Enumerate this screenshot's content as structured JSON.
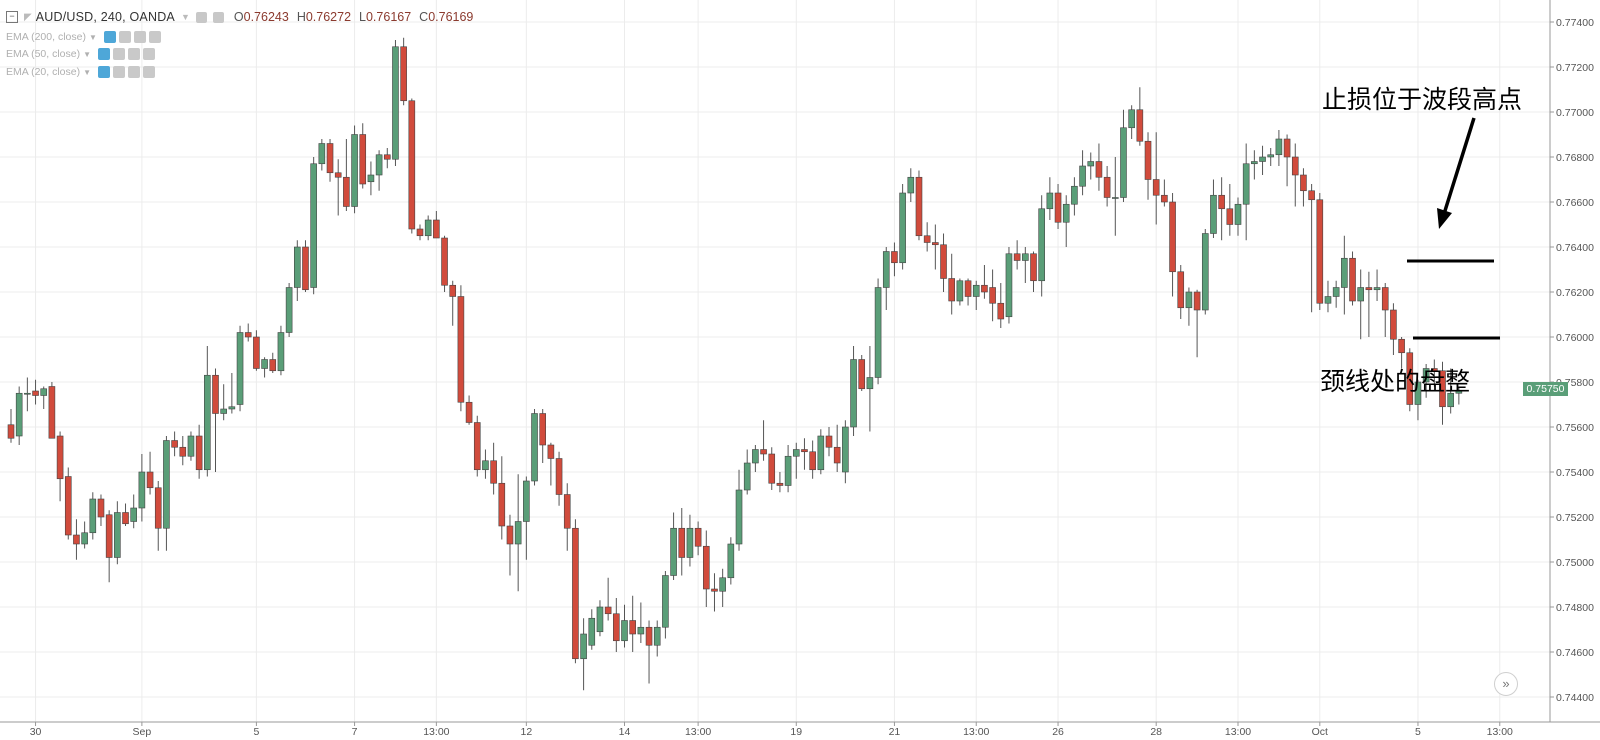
{
  "header": {
    "symbol": "AUD/USD, 240, OANDA",
    "ohlc": [
      {
        "label": "O",
        "value": "0.76243"
      },
      {
        "label": "H",
        "value": "0.76272"
      },
      {
        "label": "L",
        "value": "0.76167"
      },
      {
        "label": "C",
        "value": "0.76169"
      }
    ]
  },
  "indicators": [
    {
      "label": "EMA (200, close)"
    },
    {
      "label": "EMA (50, close)"
    },
    {
      "label": "EMA (20, close)"
    }
  ],
  "annotations": {
    "stop_loss": "止损位于波段高点",
    "neckline": "颈线处的盘整"
  },
  "scroll_button": "»",
  "colors": {
    "up": "#5a9e78",
    "down": "#d14b3c",
    "grid": "#ececec",
    "axis_text": "#555555"
  },
  "chart_data": {
    "type": "candlestick",
    "symbol": "AUD/USD",
    "timeframe": "240",
    "source": "OANDA",
    "price_axis": {
      "labels": [
        "0.77400",
        "0.77200",
        "0.77000",
        "0.76800",
        "0.76600",
        "0.76400",
        "0.76200",
        "0.76000",
        "0.75800",
        "0.75600",
        "0.75400",
        "0.75200",
        "0.75000",
        "0.74800",
        "0.74600",
        "0.74400"
      ],
      "range": [
        0.7428,
        0.775
      ]
    },
    "time_axis": {
      "labels": [
        "30",
        "Sep",
        "5",
        "7",
        "13:00",
        "12",
        "14",
        "13:00",
        "19",
        "21",
        "13:00",
        "26",
        "28",
        "13:00",
        "Oct",
        "5",
        "13:00"
      ],
      "label_bar_index": [
        3,
        16,
        30,
        42,
        52,
        63,
        75,
        84,
        96,
        108,
        118,
        128,
        140,
        150,
        160,
        172,
        182
      ]
    },
    "last_price": "0.75750",
    "candles": [
      {
        "o": 0.7561,
        "h": 0.7568,
        "l": 0.7553,
        "c": 0.7555
      },
      {
        "o": 0.7556,
        "h": 0.7578,
        "l": 0.7552,
        "c": 0.7575
      },
      {
        "o": 0.7575,
        "h": 0.7582,
        "l": 0.7567,
        "c": 0.7575
      },
      {
        "o": 0.7576,
        "h": 0.7581,
        "l": 0.757,
        "c": 0.7574
      },
      {
        "o": 0.7574,
        "h": 0.7578,
        "l": 0.7568,
        "c": 0.7577
      },
      {
        "o": 0.7578,
        "h": 0.758,
        "l": 0.7555,
        "c": 0.7555
      },
      {
        "o": 0.7556,
        "h": 0.7558,
        "l": 0.7527,
        "c": 0.7537
      },
      {
        "o": 0.7538,
        "h": 0.7542,
        "l": 0.751,
        "c": 0.7512
      },
      {
        "o": 0.7512,
        "h": 0.7519,
        "l": 0.7501,
        "c": 0.7508
      },
      {
        "o": 0.7508,
        "h": 0.7518,
        "l": 0.7506,
        "c": 0.7513
      },
      {
        "o": 0.7513,
        "h": 0.7531,
        "l": 0.751,
        "c": 0.7528
      },
      {
        "o": 0.7528,
        "h": 0.753,
        "l": 0.7516,
        "c": 0.752
      },
      {
        "o": 0.7521,
        "h": 0.7523,
        "l": 0.7491,
        "c": 0.7502
      },
      {
        "o": 0.7502,
        "h": 0.7527,
        "l": 0.7499,
        "c": 0.7522
      },
      {
        "o": 0.7522,
        "h": 0.7526,
        "l": 0.7516,
        "c": 0.7517
      },
      {
        "o": 0.7518,
        "h": 0.753,
        "l": 0.7515,
        "c": 0.7524
      },
      {
        "o": 0.7524,
        "h": 0.7548,
        "l": 0.7518,
        "c": 0.754
      },
      {
        "o": 0.754,
        "h": 0.7549,
        "l": 0.753,
        "c": 0.7533
      },
      {
        "o": 0.7533,
        "h": 0.7536,
        "l": 0.7505,
        "c": 0.7515
      },
      {
        "o": 0.7515,
        "h": 0.7556,
        "l": 0.7505,
        "c": 0.7554
      },
      {
        "o": 0.7554,
        "h": 0.7558,
        "l": 0.7547,
        "c": 0.7551
      },
      {
        "o": 0.7551,
        "h": 0.7556,
        "l": 0.7543,
        "c": 0.7547
      },
      {
        "o": 0.7547,
        "h": 0.7558,
        "l": 0.7545,
        "c": 0.7556
      },
      {
        "o": 0.7556,
        "h": 0.7561,
        "l": 0.7537,
        "c": 0.7541
      },
      {
        "o": 0.7541,
        "h": 0.7596,
        "l": 0.7538,
        "c": 0.7583
      },
      {
        "o": 0.7583,
        "h": 0.7586,
        "l": 0.754,
        "c": 0.7566
      },
      {
        "o": 0.7566,
        "h": 0.7579,
        "l": 0.7563,
        "c": 0.7568
      },
      {
        "o": 0.7568,
        "h": 0.7584,
        "l": 0.7566,
        "c": 0.7569
      },
      {
        "o": 0.757,
        "h": 0.7605,
        "l": 0.7567,
        "c": 0.7602
      },
      {
        "o": 0.7602,
        "h": 0.7606,
        "l": 0.7598,
        "c": 0.76
      },
      {
        "o": 0.76,
        "h": 0.7603,
        "l": 0.7585,
        "c": 0.7586
      },
      {
        "o": 0.7586,
        "h": 0.7591,
        "l": 0.7582,
        "c": 0.759
      },
      {
        "o": 0.759,
        "h": 0.7593,
        "l": 0.7584,
        "c": 0.7585
      },
      {
        "o": 0.7585,
        "h": 0.7605,
        "l": 0.7583,
        "c": 0.7602
      },
      {
        "o": 0.7602,
        "h": 0.7624,
        "l": 0.76,
        "c": 0.7622
      },
      {
        "o": 0.7622,
        "h": 0.7643,
        "l": 0.7616,
        "c": 0.764
      },
      {
        "o": 0.764,
        "h": 0.7643,
        "l": 0.762,
        "c": 0.7621
      },
      {
        "o": 0.7622,
        "h": 0.768,
        "l": 0.7619,
        "c": 0.7677
      },
      {
        "o": 0.7677,
        "h": 0.7688,
        "l": 0.7674,
        "c": 0.7686
      },
      {
        "o": 0.7686,
        "h": 0.7688,
        "l": 0.7669,
        "c": 0.7673
      },
      {
        "o": 0.7673,
        "h": 0.7679,
        "l": 0.7654,
        "c": 0.7671
      },
      {
        "o": 0.7671,
        "h": 0.7688,
        "l": 0.7656,
        "c": 0.7658
      },
      {
        "o": 0.7658,
        "h": 0.7694,
        "l": 0.7655,
        "c": 0.769
      },
      {
        "o": 0.769,
        "h": 0.7695,
        "l": 0.7666,
        "c": 0.7668
      },
      {
        "o": 0.7669,
        "h": 0.7678,
        "l": 0.7663,
        "c": 0.7672
      },
      {
        "o": 0.7672,
        "h": 0.7683,
        "l": 0.7665,
        "c": 0.7681
      },
      {
        "o": 0.7681,
        "h": 0.7684,
        "l": 0.7675,
        "c": 0.7679
      },
      {
        "o": 0.7679,
        "h": 0.7732,
        "l": 0.7676,
        "c": 0.7729
      },
      {
        "o": 0.7729,
        "h": 0.7733,
        "l": 0.7703,
        "c": 0.7705
      },
      {
        "o": 0.7705,
        "h": 0.7706,
        "l": 0.7646,
        "c": 0.7648
      },
      {
        "o": 0.7648,
        "h": 0.765,
        "l": 0.7643,
        "c": 0.7645
      },
      {
        "o": 0.7645,
        "h": 0.7654,
        "l": 0.7643,
        "c": 0.7652
      },
      {
        "o": 0.7652,
        "h": 0.7656,
        "l": 0.7644,
        "c": 0.7644
      },
      {
        "o": 0.7644,
        "h": 0.7645,
        "l": 0.762,
        "c": 0.7623
      },
      {
        "o": 0.7623,
        "h": 0.7625,
        "l": 0.7605,
        "c": 0.7618
      },
      {
        "o": 0.7618,
        "h": 0.7623,
        "l": 0.7567,
        "c": 0.7571
      },
      {
        "o": 0.7571,
        "h": 0.7574,
        "l": 0.7561,
        "c": 0.7562
      },
      {
        "o": 0.7562,
        "h": 0.7565,
        "l": 0.7538,
        "c": 0.7541
      },
      {
        "o": 0.7541,
        "h": 0.755,
        "l": 0.7537,
        "c": 0.7545
      },
      {
        "o": 0.7545,
        "h": 0.7553,
        "l": 0.753,
        "c": 0.7535
      },
      {
        "o": 0.7535,
        "h": 0.7547,
        "l": 0.751,
        "c": 0.7516
      },
      {
        "o": 0.7516,
        "h": 0.7521,
        "l": 0.7494,
        "c": 0.7508
      },
      {
        "o": 0.7508,
        "h": 0.7539,
        "l": 0.7487,
        "c": 0.7518
      },
      {
        "o": 0.7518,
        "h": 0.7538,
        "l": 0.7501,
        "c": 0.7536
      },
      {
        "o": 0.7536,
        "h": 0.7568,
        "l": 0.7534,
        "c": 0.7566
      },
      {
        "o": 0.7566,
        "h": 0.7568,
        "l": 0.7544,
        "c": 0.7552
      },
      {
        "o": 0.7552,
        "h": 0.7553,
        "l": 0.7534,
        "c": 0.7546
      },
      {
        "o": 0.7546,
        "h": 0.7549,
        "l": 0.7525,
        "c": 0.753
      },
      {
        "o": 0.753,
        "h": 0.7535,
        "l": 0.7505,
        "c": 0.7515
      },
      {
        "o": 0.7515,
        "h": 0.7519,
        "l": 0.7455,
        "c": 0.7457
      },
      {
        "o": 0.7457,
        "h": 0.7475,
        "l": 0.7443,
        "c": 0.7468
      },
      {
        "o": 0.7463,
        "h": 0.7479,
        "l": 0.7461,
        "c": 0.7475
      },
      {
        "o": 0.7469,
        "h": 0.7483,
        "l": 0.7467,
        "c": 0.748
      },
      {
        "o": 0.748,
        "h": 0.7493,
        "l": 0.7474,
        "c": 0.7477
      },
      {
        "o": 0.7477,
        "h": 0.7484,
        "l": 0.746,
        "c": 0.7465
      },
      {
        "o": 0.7465,
        "h": 0.7481,
        "l": 0.7462,
        "c": 0.7474
      },
      {
        "o": 0.7474,
        "h": 0.7485,
        "l": 0.746,
        "c": 0.7468
      },
      {
        "o": 0.7468,
        "h": 0.7482,
        "l": 0.7464,
        "c": 0.7471
      },
      {
        "o": 0.7471,
        "h": 0.7474,
        "l": 0.7446,
        "c": 0.7463
      },
      {
        "o": 0.7463,
        "h": 0.7474,
        "l": 0.7458,
        "c": 0.7471
      },
      {
        "o": 0.7471,
        "h": 0.7496,
        "l": 0.7466,
        "c": 0.7494
      },
      {
        "o": 0.7494,
        "h": 0.7522,
        "l": 0.7492,
        "c": 0.7515
      },
      {
        "o": 0.7515,
        "h": 0.7524,
        "l": 0.7494,
        "c": 0.7502
      },
      {
        "o": 0.7502,
        "h": 0.7521,
        "l": 0.7498,
        "c": 0.7515
      },
      {
        "o": 0.7515,
        "h": 0.7518,
        "l": 0.7503,
        "c": 0.7507
      },
      {
        "o": 0.7507,
        "h": 0.7514,
        "l": 0.748,
        "c": 0.7488
      },
      {
        "o": 0.7488,
        "h": 0.7495,
        "l": 0.7478,
        "c": 0.7487
      },
      {
        "o": 0.7487,
        "h": 0.7497,
        "l": 0.748,
        "c": 0.7493
      },
      {
        "o": 0.7493,
        "h": 0.7511,
        "l": 0.749,
        "c": 0.7508
      },
      {
        "o": 0.7508,
        "h": 0.7541,
        "l": 0.7505,
        "c": 0.7532
      },
      {
        "o": 0.7532,
        "h": 0.755,
        "l": 0.753,
        "c": 0.7544
      },
      {
        "o": 0.7544,
        "h": 0.7552,
        "l": 0.754,
        "c": 0.755
      },
      {
        "o": 0.755,
        "h": 0.7563,
        "l": 0.7545,
        "c": 0.7548
      },
      {
        "o": 0.7548,
        "h": 0.7551,
        "l": 0.7532,
        "c": 0.7535
      },
      {
        "o": 0.7535,
        "h": 0.754,
        "l": 0.7531,
        "c": 0.7534
      },
      {
        "o": 0.7534,
        "h": 0.7552,
        "l": 0.7531,
        "c": 0.7547
      },
      {
        "o": 0.7547,
        "h": 0.7553,
        "l": 0.7537,
        "c": 0.755
      },
      {
        "o": 0.755,
        "h": 0.7555,
        "l": 0.7541,
        "c": 0.7549
      },
      {
        "o": 0.7549,
        "h": 0.7554,
        "l": 0.7537,
        "c": 0.7541
      },
      {
        "o": 0.7541,
        "h": 0.7559,
        "l": 0.7539,
        "c": 0.7556
      },
      {
        "o": 0.7556,
        "h": 0.756,
        "l": 0.7547,
        "c": 0.7551
      },
      {
        "o": 0.7551,
        "h": 0.7561,
        "l": 0.754,
        "c": 0.7544
      },
      {
        "o": 0.754,
        "h": 0.7563,
        "l": 0.7535,
        "c": 0.756
      },
      {
        "o": 0.756,
        "h": 0.7596,
        "l": 0.7556,
        "c": 0.759
      },
      {
        "o": 0.759,
        "h": 0.7592,
        "l": 0.7576,
        "c": 0.7577
      },
      {
        "o": 0.7577,
        "h": 0.7596,
        "l": 0.7558,
        "c": 0.7582
      },
      {
        "o": 0.7582,
        "h": 0.7626,
        "l": 0.7579,
        "c": 0.7622
      },
      {
        "o": 0.7622,
        "h": 0.764,
        "l": 0.7612,
        "c": 0.7638
      },
      {
        "o": 0.7638,
        "h": 0.7642,
        "l": 0.7627,
        "c": 0.7633
      },
      {
        "o": 0.7633,
        "h": 0.7668,
        "l": 0.763,
        "c": 0.7664
      },
      {
        "o": 0.7664,
        "h": 0.7675,
        "l": 0.766,
        "c": 0.7671
      },
      {
        "o": 0.7671,
        "h": 0.7674,
        "l": 0.7643,
        "c": 0.7645
      },
      {
        "o": 0.7645,
        "h": 0.7651,
        "l": 0.7638,
        "c": 0.7642
      },
      {
        "o": 0.7642,
        "h": 0.765,
        "l": 0.763,
        "c": 0.7641
      },
      {
        "o": 0.7641,
        "h": 0.7646,
        "l": 0.762,
        "c": 0.7626
      },
      {
        "o": 0.7626,
        "h": 0.7637,
        "l": 0.761,
        "c": 0.7616
      },
      {
        "o": 0.7616,
        "h": 0.7626,
        "l": 0.7614,
        "c": 0.7625
      },
      {
        "o": 0.7625,
        "h": 0.7626,
        "l": 0.7614,
        "c": 0.7618
      },
      {
        "o": 0.7618,
        "h": 0.7625,
        "l": 0.7612,
        "c": 0.7623
      },
      {
        "o": 0.7623,
        "h": 0.7632,
        "l": 0.7617,
        "c": 0.762
      },
      {
        "o": 0.7622,
        "h": 0.763,
        "l": 0.7607,
        "c": 0.7615
      },
      {
        "o": 0.7615,
        "h": 0.7624,
        "l": 0.7604,
        "c": 0.7608
      },
      {
        "o": 0.7609,
        "h": 0.764,
        "l": 0.7606,
        "c": 0.7637
      },
      {
        "o": 0.7637,
        "h": 0.7643,
        "l": 0.763,
        "c": 0.7634
      },
      {
        "o": 0.7634,
        "h": 0.764,
        "l": 0.7624,
        "c": 0.7637
      },
      {
        "o": 0.7637,
        "h": 0.7638,
        "l": 0.762,
        "c": 0.7625
      },
      {
        "o": 0.7625,
        "h": 0.7663,
        "l": 0.7618,
        "c": 0.7657
      },
      {
        "o": 0.7657,
        "h": 0.7671,
        "l": 0.7652,
        "c": 0.7664
      },
      {
        "o": 0.7664,
        "h": 0.7668,
        "l": 0.7648,
        "c": 0.7651
      },
      {
        "o": 0.7651,
        "h": 0.7663,
        "l": 0.764,
        "c": 0.7659
      },
      {
        "o": 0.7659,
        "h": 0.7671,
        "l": 0.7654,
        "c": 0.7667
      },
      {
        "o": 0.7667,
        "h": 0.7683,
        "l": 0.7663,
        "c": 0.7676
      },
      {
        "o": 0.7676,
        "h": 0.7682,
        "l": 0.767,
        "c": 0.7678
      },
      {
        "o": 0.7678,
        "h": 0.7686,
        "l": 0.7665,
        "c": 0.7671
      },
      {
        "o": 0.7671,
        "h": 0.7676,
        "l": 0.7658,
        "c": 0.7662
      },
      {
        "o": 0.7662,
        "h": 0.768,
        "l": 0.7645,
        "c": 0.7662
      },
      {
        "o": 0.7662,
        "h": 0.7701,
        "l": 0.766,
        "c": 0.7693
      },
      {
        "o": 0.7693,
        "h": 0.7703,
        "l": 0.7688,
        "c": 0.7701
      },
      {
        "o": 0.7701,
        "h": 0.7711,
        "l": 0.7685,
        "c": 0.7687
      },
      {
        "o": 0.7687,
        "h": 0.7691,
        "l": 0.7661,
        "c": 0.767
      },
      {
        "o": 0.767,
        "h": 0.7691,
        "l": 0.765,
        "c": 0.7663
      },
      {
        "o": 0.7663,
        "h": 0.767,
        "l": 0.7658,
        "c": 0.766
      },
      {
        "o": 0.766,
        "h": 0.7664,
        "l": 0.7618,
        "c": 0.7629
      },
      {
        "o": 0.7629,
        "h": 0.7632,
        "l": 0.7608,
        "c": 0.7613
      },
      {
        "o": 0.7613,
        "h": 0.7622,
        "l": 0.7605,
        "c": 0.762
      },
      {
        "o": 0.762,
        "h": 0.7621,
        "l": 0.7591,
        "c": 0.7612
      },
      {
        "o": 0.7612,
        "h": 0.7648,
        "l": 0.761,
        "c": 0.7646
      },
      {
        "o": 0.7646,
        "h": 0.767,
        "l": 0.7644,
        "c": 0.7663
      },
      {
        "o": 0.7663,
        "h": 0.7671,
        "l": 0.7643,
        "c": 0.7657
      },
      {
        "o": 0.7657,
        "h": 0.7668,
        "l": 0.7645,
        "c": 0.765
      },
      {
        "o": 0.765,
        "h": 0.7662,
        "l": 0.7645,
        "c": 0.7659
      },
      {
        "o": 0.7659,
        "h": 0.7686,
        "l": 0.7643,
        "c": 0.7677
      },
      {
        "o": 0.7677,
        "h": 0.7683,
        "l": 0.767,
        "c": 0.7678
      },
      {
        "o": 0.7678,
        "h": 0.7685,
        "l": 0.7672,
        "c": 0.768
      },
      {
        "o": 0.768,
        "h": 0.7684,
        "l": 0.7676,
        "c": 0.7681
      },
      {
        "o": 0.7681,
        "h": 0.7692,
        "l": 0.7676,
        "c": 0.7688
      },
      {
        "o": 0.7688,
        "h": 0.769,
        "l": 0.7667,
        "c": 0.768
      },
      {
        "o": 0.768,
        "h": 0.7686,
        "l": 0.7658,
        "c": 0.7672
      },
      {
        "o": 0.7672,
        "h": 0.7675,
        "l": 0.7658,
        "c": 0.7665
      },
      {
        "o": 0.7665,
        "h": 0.7668,
        "l": 0.7611,
        "c": 0.7661
      },
      {
        "o": 0.7661,
        "h": 0.7664,
        "l": 0.7612,
        "c": 0.7615
      },
      {
        "o": 0.7615,
        "h": 0.7625,
        "l": 0.7611,
        "c": 0.7618
      },
      {
        "o": 0.7618,
        "h": 0.7625,
        "l": 0.7613,
        "c": 0.7622
      },
      {
        "o": 0.7622,
        "h": 0.7645,
        "l": 0.761,
        "c": 0.7635
      },
      {
        "o": 0.7635,
        "h": 0.7638,
        "l": 0.7614,
        "c": 0.7616
      },
      {
        "o": 0.7616,
        "h": 0.763,
        "l": 0.7599,
        "c": 0.7622
      },
      {
        "o": 0.7622,
        "h": 0.7629,
        "l": 0.76,
        "c": 0.7621
      },
      {
        "o": 0.7621,
        "h": 0.763,
        "l": 0.7616,
        "c": 0.7622
      },
      {
        "o": 0.7622,
        "h": 0.7624,
        "l": 0.76,
        "c": 0.7612
      },
      {
        "o": 0.7612,
        "h": 0.7615,
        "l": 0.7592,
        "c": 0.7599
      },
      {
        "o": 0.7599,
        "h": 0.76,
        "l": 0.7586,
        "c": 0.7593
      },
      {
        "o": 0.7593,
        "h": 0.7595,
        "l": 0.7567,
        "c": 0.757
      },
      {
        "o": 0.757,
        "h": 0.7581,
        "l": 0.7563,
        "c": 0.758
      },
      {
        "o": 0.758,
        "h": 0.7588,
        "l": 0.7573,
        "c": 0.7586
      },
      {
        "o": 0.7586,
        "h": 0.759,
        "l": 0.7578,
        "c": 0.7585
      },
      {
        "o": 0.7585,
        "h": 0.7589,
        "l": 0.7561,
        "c": 0.7569
      },
      {
        "o": 0.7569,
        "h": 0.7586,
        "l": 0.7566,
        "c": 0.7575
      },
      {
        "o": 0.7575,
        "h": 0.7578,
        "l": 0.757,
        "c": 0.7576
      }
    ]
  }
}
